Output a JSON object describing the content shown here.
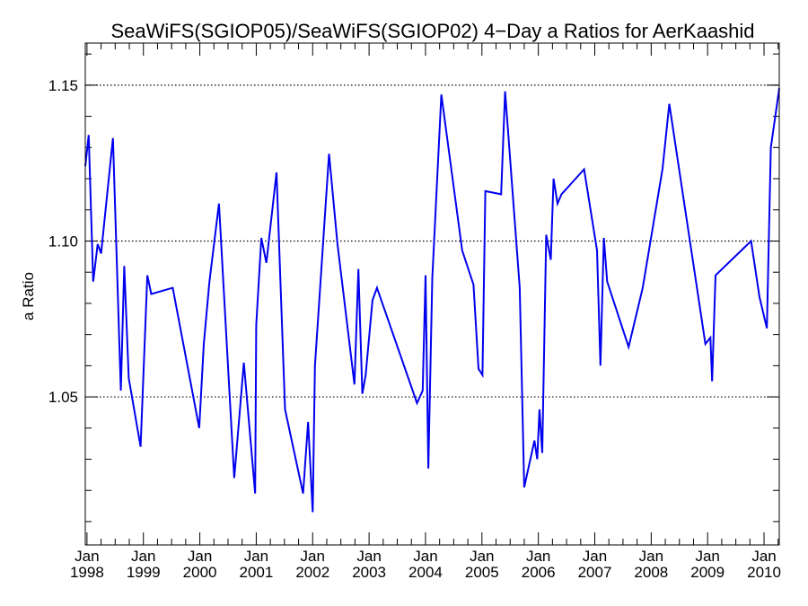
{
  "chart_data": {
    "type": "line",
    "title": "SeaWiFS(SGIOP05)/SeaWiFS(SGIOP02) 4−Day a Ratios for AerKaashid",
    "xlabel": "",
    "ylabel": "a Ratio",
    "xlim": [
      1997.97,
      2010.27
    ],
    "ylim": [
      1.0025,
      1.1635
    ],
    "grid": "horizontal dotted at labeled ticks",
    "line_color": "#0000ee",
    "x_tick_labels": [
      {
        "year": 1998,
        "month": "Jan",
        "label": "1998"
      },
      {
        "year": 1999,
        "month": "Jan",
        "label": "1999"
      },
      {
        "year": 2000,
        "month": "Jan",
        "label": "2000"
      },
      {
        "year": 2001,
        "month": "Jan",
        "label": "2001"
      },
      {
        "year": 2002,
        "month": "Jan",
        "label": "2002"
      },
      {
        "year": 2003,
        "month": "Jan",
        "label": "2003"
      },
      {
        "year": 2004,
        "month": "Jan",
        "label": "2004"
      },
      {
        "year": 2005,
        "month": "Jan",
        "label": "2005"
      },
      {
        "year": 2006,
        "month": "Jan",
        "label": "2006"
      },
      {
        "year": 2007,
        "month": "Jan",
        "label": "2007"
      },
      {
        "year": 2008,
        "month": "Jan",
        "label": "2008"
      },
      {
        "year": 2009,
        "month": "Jan",
        "label": "2009"
      },
      {
        "year": 2010,
        "month": "Jan",
        "label": "2010"
      }
    ],
    "y_tick_labels": [
      {
        "value": 1.05,
        "label": "1.05"
      },
      {
        "value": 1.1,
        "label": "1.10"
      },
      {
        "value": 1.15,
        "label": "1.15"
      }
    ],
    "series": [
      {
        "x": [
          1997.97,
          1998.03,
          1998.11,
          1998.19,
          1998.25,
          1998.46,
          1998.6,
          1998.66,
          1998.74,
          1998.95,
          1999.07,
          1999.14,
          1999.52,
          1999.99,
          2000.07,
          2000.17,
          2000.34,
          2000.61,
          2000.78,
          2000.98,
          2001.0,
          2001.09,
          2001.18,
          2001.36,
          2001.51,
          2001.83,
          2001.92,
          2002.0,
          2002.04,
          2002.29,
          2002.44,
          2002.74,
          2002.81,
          2002.88,
          2002.94,
          2003.06,
          2003.14,
          2003.85,
          2003.95,
          2004.0,
          2004.05,
          2004.12,
          2004.28,
          2004.65,
          2004.85,
          2004.94,
          2005.01,
          2005.06,
          2005.34,
          2005.41,
          2005.67,
          2005.75,
          2005.93,
          2005.98,
          2006.02,
          2006.07,
          2006.14,
          2006.22,
          2006.27,
          2006.34,
          2006.41,
          2006.81,
          2007.04,
          2007.1,
          2007.16,
          2007.22,
          2007.6,
          2007.85,
          2008.2,
          2008.32,
          2008.96,
          2009.05,
          2009.08,
          2009.14,
          2009.77,
          2009.92,
          2010.05,
          2010.12,
          2010.27
        ],
        "y": [
          1.124,
          1.134,
          1.087,
          1.099,
          1.096,
          1.133,
          1.052,
          1.092,
          1.056,
          1.034,
          1.089,
          1.083,
          1.085,
          1.04,
          1.067,
          1.087,
          1.112,
          1.024,
          1.061,
          1.019,
          1.073,
          1.101,
          1.093,
          1.122,
          1.046,
          1.019,
          1.042,
          1.013,
          1.06,
          1.128,
          1.099,
          1.054,
          1.091,
          1.051,
          1.057,
          1.081,
          1.085,
          1.048,
          1.052,
          1.089,
          1.027,
          1.088,
          1.147,
          1.097,
          1.086,
          1.059,
          1.057,
          1.116,
          1.115,
          1.148,
          1.085,
          1.021,
          1.036,
          1.03,
          1.046,
          1.032,
          1.102,
          1.094,
          1.12,
          1.112,
          1.115,
          1.123,
          1.097,
          1.06,
          1.101,
          1.087,
          1.066,
          1.085,
          1.123,
          1.144,
          1.067,
          1.069,
          1.055,
          1.089,
          1.1,
          1.082,
          1.072,
          1.13,
          1.149
        ]
      }
    ]
  }
}
